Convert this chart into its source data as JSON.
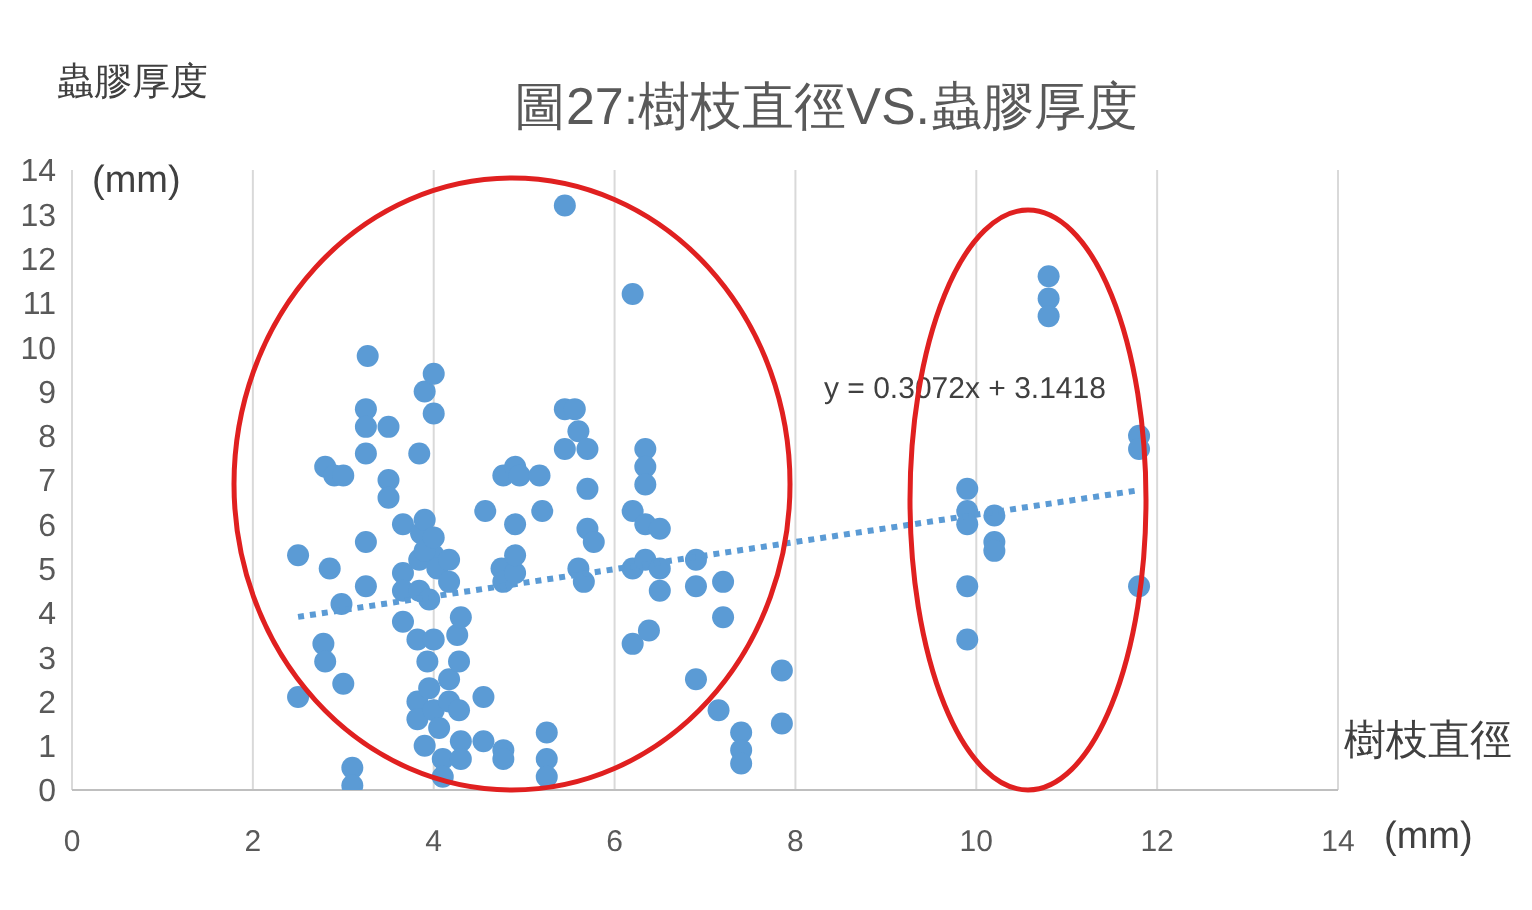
{
  "chart_data": {
    "type": "scatter",
    "title": "圖27:樹枝直徑VS.蟲膠厚度",
    "xlabel": "樹枝直徑 (mm)",
    "ylabel": "蟲膠厚度 (mm)",
    "xlim": [
      0,
      14
    ],
    "xticks": [
      0,
      2,
      4,
      6,
      8,
      10,
      12,
      14
    ],
    "ylim": [
      0,
      14
    ],
    "yticks": [
      0,
      1,
      2,
      3,
      4,
      5,
      6,
      7,
      8,
      9,
      10,
      11,
      12,
      13,
      14
    ],
    "grid": "x",
    "marker": "circle",
    "legend": false,
    "annotations": [
      "y = 0.3072x + 3.1418"
    ],
    "series": [
      {
        "color": "#5b9bd5",
        "x": [
          2.5,
          2.5,
          2.78,
          2.8,
          2.8,
          2.9,
          3.0,
          2.85,
          2.98,
          3.0,
          3.1,
          3.1,
          3.27,
          3.25,
          3.25,
          3.25,
          3.25,
          3.25,
          3.5,
          3.5,
          3.5,
          3.66,
          3.66,
          3.66,
          3.66,
          3.84,
          3.86,
          3.9,
          4.0,
          4.0,
          3.9,
          4.0,
          3.84,
          3.9,
          3.84,
          3.82,
          3.95,
          4.0,
          4.04,
          3.93,
          4.17,
          4.17,
          4.0,
          3.82,
          3.82,
          3.9,
          3.95,
          4.0,
          4.06,
          4.1,
          4.1,
          4.17,
          4.17,
          4.26,
          4.28,
          4.28,
          4.3,
          4.3,
          4.3,
          4.55,
          4.55,
          4.77,
          4.77,
          4.57,
          4.77,
          4.9,
          4.95,
          4.75,
          4.77,
          4.9,
          4.9,
          4.9,
          5.2,
          5.17,
          5.25,
          5.25,
          5.25,
          5.45,
          5.45,
          5.56,
          5.45,
          5.6,
          5.7,
          5.7,
          5.7,
          5.6,
          5.66,
          5.77,
          6.2,
          6.2,
          6.2,
          6.2,
          6.34,
          6.34,
          6.34,
          6.34,
          6.34,
          6.38,
          6.5,
          6.5,
          6.5,
          6.9,
          6.9,
          6.9,
          7.2,
          7.2,
          7.15,
          7.4,
          7.4,
          7.4,
          7.85,
          7.85,
          9.9,
          9.9,
          9.9,
          9.9,
          9.9,
          10.2,
          10.2,
          10.2,
          10.8,
          10.8,
          10.8,
          11.8,
          11.8,
          11.8
        ],
        "values": [
          5.3,
          2.1,
          3.3,
          2.9,
          7.3,
          7.1,
          7.1,
          5.0,
          4.2,
          2.4,
          0.5,
          0.1,
          9.8,
          8.6,
          8.2,
          7.6,
          5.6,
          4.6,
          8.2,
          7.0,
          6.6,
          6.0,
          4.9,
          4.5,
          3.8,
          7.6,
          5.8,
          9.0,
          9.4,
          8.5,
          6.1,
          5.3,
          5.2,
          5.4,
          4.5,
          3.4,
          4.3,
          3.4,
          5.0,
          2.9,
          4.7,
          5.2,
          5.7,
          2.0,
          1.6,
          1.0,
          2.3,
          1.8,
          1.4,
          0.7,
          0.3,
          2.5,
          2.0,
          3.5,
          2.9,
          1.8,
          1.1,
          0.7,
          3.9,
          2.1,
          1.1,
          0.9,
          0.7,
          6.3,
          7.1,
          7.3,
          7.1,
          5.0,
          4.7,
          4.9,
          5.3,
          6.0,
          6.3,
          7.1,
          1.3,
          0.7,
          0.3,
          13.2,
          8.6,
          8.6,
          7.7,
          8.1,
          7.7,
          6.8,
          5.9,
          5.0,
          4.7,
          5.6,
          11.2,
          6.3,
          5.0,
          3.3,
          7.7,
          7.3,
          6.9,
          6.0,
          5.2,
          3.6,
          5.9,
          5.0,
          4.5,
          5.2,
          4.6,
          2.5,
          4.7,
          3.9,
          1.8,
          1.3,
          0.9,
          0.6,
          2.7,
          1.5,
          6.8,
          6.3,
          6.0,
          4.6,
          3.4,
          6.2,
          5.6,
          5.4,
          11.6,
          11.1,
          10.7,
          8.0,
          7.7,
          4.6
        ]
      },
      {
        "type": "line",
        "color": "#5b9bd5",
        "marker": "none",
        "line_style": "dotted",
        "x": [
          2.5,
          11.8
        ],
        "values": [
          3.91,
          6.77
        ]
      }
    ]
  }
}
